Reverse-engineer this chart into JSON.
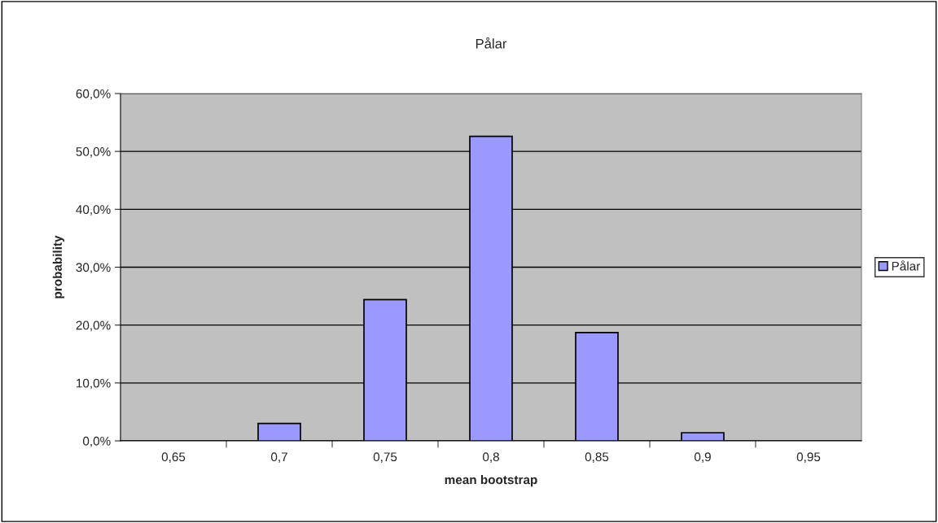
{
  "chart_data": {
    "type": "bar",
    "title": "Pålar",
    "xlabel": "mean bootstrap",
    "ylabel": "probability",
    "categories": [
      "0,65",
      "0,7",
      "0,75",
      "0,8",
      "0,85",
      "0,9",
      "0,95"
    ],
    "series": [
      {
        "name": "Pålar",
        "color": "#9999ff",
        "values": [
          null,
          3.0,
          24.4,
          52.6,
          18.7,
          1.4,
          null
        ]
      }
    ],
    "ylim": [
      0,
      60
    ],
    "yticks": [
      {
        "value": 0,
        "label": "0,0%"
      },
      {
        "value": 10,
        "label": "10,0%"
      },
      {
        "value": 20,
        "label": "20,0%"
      },
      {
        "value": 30,
        "label": "30,0%"
      },
      {
        "value": 40,
        "label": "40,0%"
      },
      {
        "value": 50,
        "label": "50,0%"
      },
      {
        "value": 60,
        "label": "60,0%"
      }
    ],
    "grid": "y",
    "legend": "right"
  }
}
